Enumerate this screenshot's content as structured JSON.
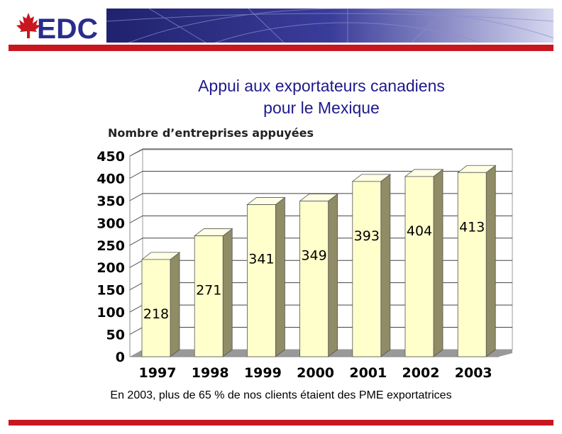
{
  "header": {
    "logo_text": "EDC",
    "logo_icon": "maple-leaf-icon",
    "brand_color": "#c8171f",
    "banner_color": "#2a2c8c"
  },
  "chart_data": {
    "type": "bar",
    "title": "Appui aux exportateurs canadiens pour le Mexique",
    "title_lines": [
      "Appui aux exportateurs canadiens",
      "pour le Mexique"
    ],
    "ylabel": "Nombre d’entreprises appuyées",
    "xlabel": "",
    "categories": [
      "1997",
      "1998",
      "1999",
      "2000",
      "2001",
      "2002",
      "2003"
    ],
    "values": [
      218,
      271,
      341,
      349,
      393,
      404,
      413
    ],
    "ylim": [
      0,
      450
    ],
    "yticks": [
      "0",
      "50",
      "100",
      "150",
      "200",
      "250",
      "300",
      "350",
      "400",
      "450"
    ],
    "grid": "horizontal",
    "bar_color": "#ffffcc",
    "bar_side_color": "#8f8c66"
  },
  "footnote": "En 2003, plus de 65 % de nos clients étaient des PME exportatrices"
}
